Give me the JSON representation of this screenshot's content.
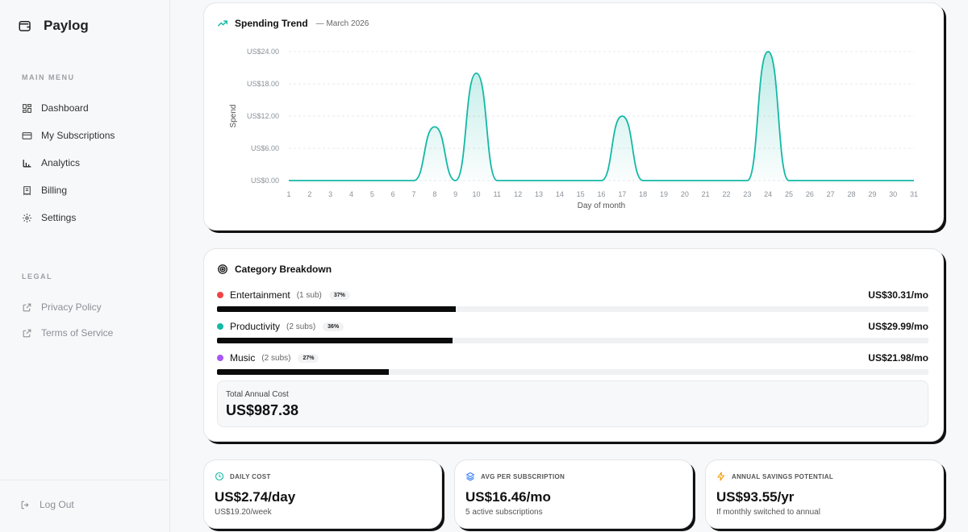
{
  "app": {
    "name": "Paylog"
  },
  "sidebar": {
    "main_menu_label": "MAIN MENU",
    "items": [
      {
        "label": "Dashboard",
        "icon": "grid-icon"
      },
      {
        "label": "My Subscriptions",
        "icon": "card-icon"
      },
      {
        "label": "Analytics",
        "icon": "bar-chart-icon"
      },
      {
        "label": "Billing",
        "icon": "receipt-icon"
      },
      {
        "label": "Settings",
        "icon": "gear-icon"
      }
    ],
    "legal_label": "LEGAL",
    "legal_items": [
      {
        "label": "Privacy Policy",
        "icon": "external-link-icon"
      },
      {
        "label": "Terms of Service",
        "icon": "external-link-icon"
      }
    ],
    "logout_label": "Log Out"
  },
  "trend": {
    "title": "Spending Trend",
    "subtitle": "— March 2026"
  },
  "chart_data": {
    "type": "area",
    "title": "Spending Trend",
    "subtitle": "— March 2026",
    "xlabel": "Day of month",
    "ylabel": "Spend",
    "x": [
      1,
      2,
      3,
      4,
      5,
      6,
      7,
      8,
      9,
      10,
      11,
      12,
      13,
      14,
      15,
      16,
      17,
      18,
      19,
      20,
      21,
      22,
      23,
      24,
      25,
      26,
      27,
      28,
      29,
      30,
      31
    ],
    "values": [
      0,
      0,
      0,
      0,
      0,
      0,
      0,
      9.99,
      0,
      19.99,
      0,
      0,
      0,
      0,
      0,
      0,
      11.99,
      0,
      0,
      0,
      0,
      0,
      0,
      23.99,
      0,
      0,
      0,
      0,
      0,
      0,
      0
    ],
    "ylim": [
      0,
      24
    ],
    "yticks": [
      "US$0.00",
      "US$6.00",
      "US$12.00",
      "US$18.00",
      "US$24.00"
    ],
    "ytick_values": [
      0,
      6,
      12,
      18,
      24
    ],
    "color": "#14b8a6",
    "grid": true
  },
  "categories": {
    "title": "Category Breakdown",
    "items": [
      {
        "name": "Entertainment",
        "subs": "(1 sub)",
        "pct": "37%",
        "share": 0.37,
        "amount": "US$30.31/mo",
        "color": "#ef4444"
      },
      {
        "name": "Productivity",
        "subs": "(2 subs)",
        "pct": "36%",
        "share": 0.365,
        "amount": "US$29.99/mo",
        "color": "#14b8a6"
      },
      {
        "name": "Music",
        "subs": "(2 subs)",
        "pct": "27%",
        "share": 0.267,
        "amount": "US$21.98/mo",
        "color": "#a855f7"
      }
    ],
    "annual_label": "Total Annual Cost",
    "annual_value": "US$987.38"
  },
  "stats": [
    {
      "title": "DAILY COST",
      "value": "US$2.74/day",
      "sub": "US$19.20/week",
      "icon": "clock-icon",
      "color": "#14b8a6"
    },
    {
      "title": "AVG PER SUBSCRIPTION",
      "value": "US$16.46/mo",
      "sub": "5 active subscriptions",
      "icon": "layers-icon",
      "color": "#3b82f6"
    },
    {
      "title": "ANNUAL SAVINGS POTENTIAL",
      "value": "US$93.55/yr",
      "sub": "If monthly switched to annual",
      "icon": "bolt-icon",
      "color": "#f59e0b"
    }
  ]
}
